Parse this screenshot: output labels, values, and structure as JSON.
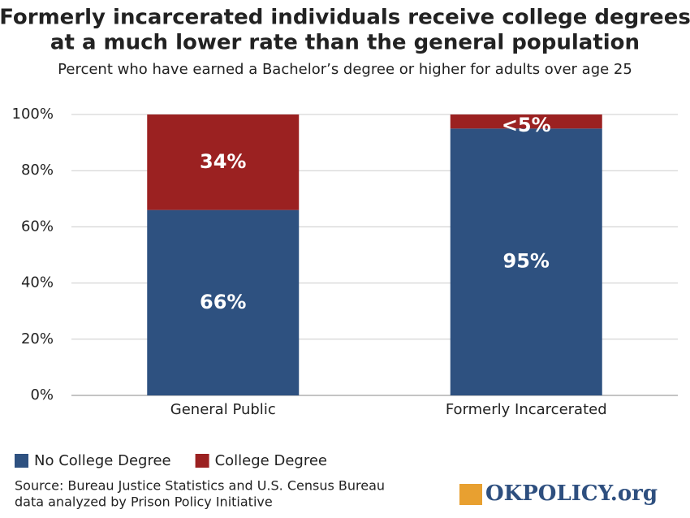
{
  "chart_data": {
    "type": "stacked_bar",
    "title": [
      "Formerly incarcerated individuals receive college degrees",
      "at a much lower rate than the general population"
    ],
    "subtitle": "Percent who have earned a Bachelor’s degree or higher for adults over age 25",
    "categories": [
      "General Public",
      "Formerly Incarcerated"
    ],
    "series": [
      {
        "name": "No College Degree",
        "color": "#2e5180",
        "values": [
          66,
          95
        ],
        "value_labels": [
          "66%",
          "95%"
        ]
      },
      {
        "name": "College Degree",
        "color": "#9b2121",
        "values": [
          34,
          5
        ],
        "value_labels": [
          "34%",
          "<5%"
        ]
      }
    ],
    "ylim": [
      0,
      100
    ],
    "yticks": [
      {
        "value": 0,
        "label": "0%"
      },
      {
        "value": 20,
        "label": "20%"
      },
      {
        "value": 40,
        "label": "40%"
      },
      {
        "value": 60,
        "label": "60%"
      },
      {
        "value": 80,
        "label": "80%"
      },
      {
        "value": 100,
        "label": "100%"
      }
    ],
    "grid": true,
    "legend": "bottom-left",
    "source": [
      "Source: Bureau Justice Statistics and U.S. Census Bureau",
      "data analyzed by Prison Policy Initiative"
    ],
    "logo": "OKPOLICY.org"
  }
}
